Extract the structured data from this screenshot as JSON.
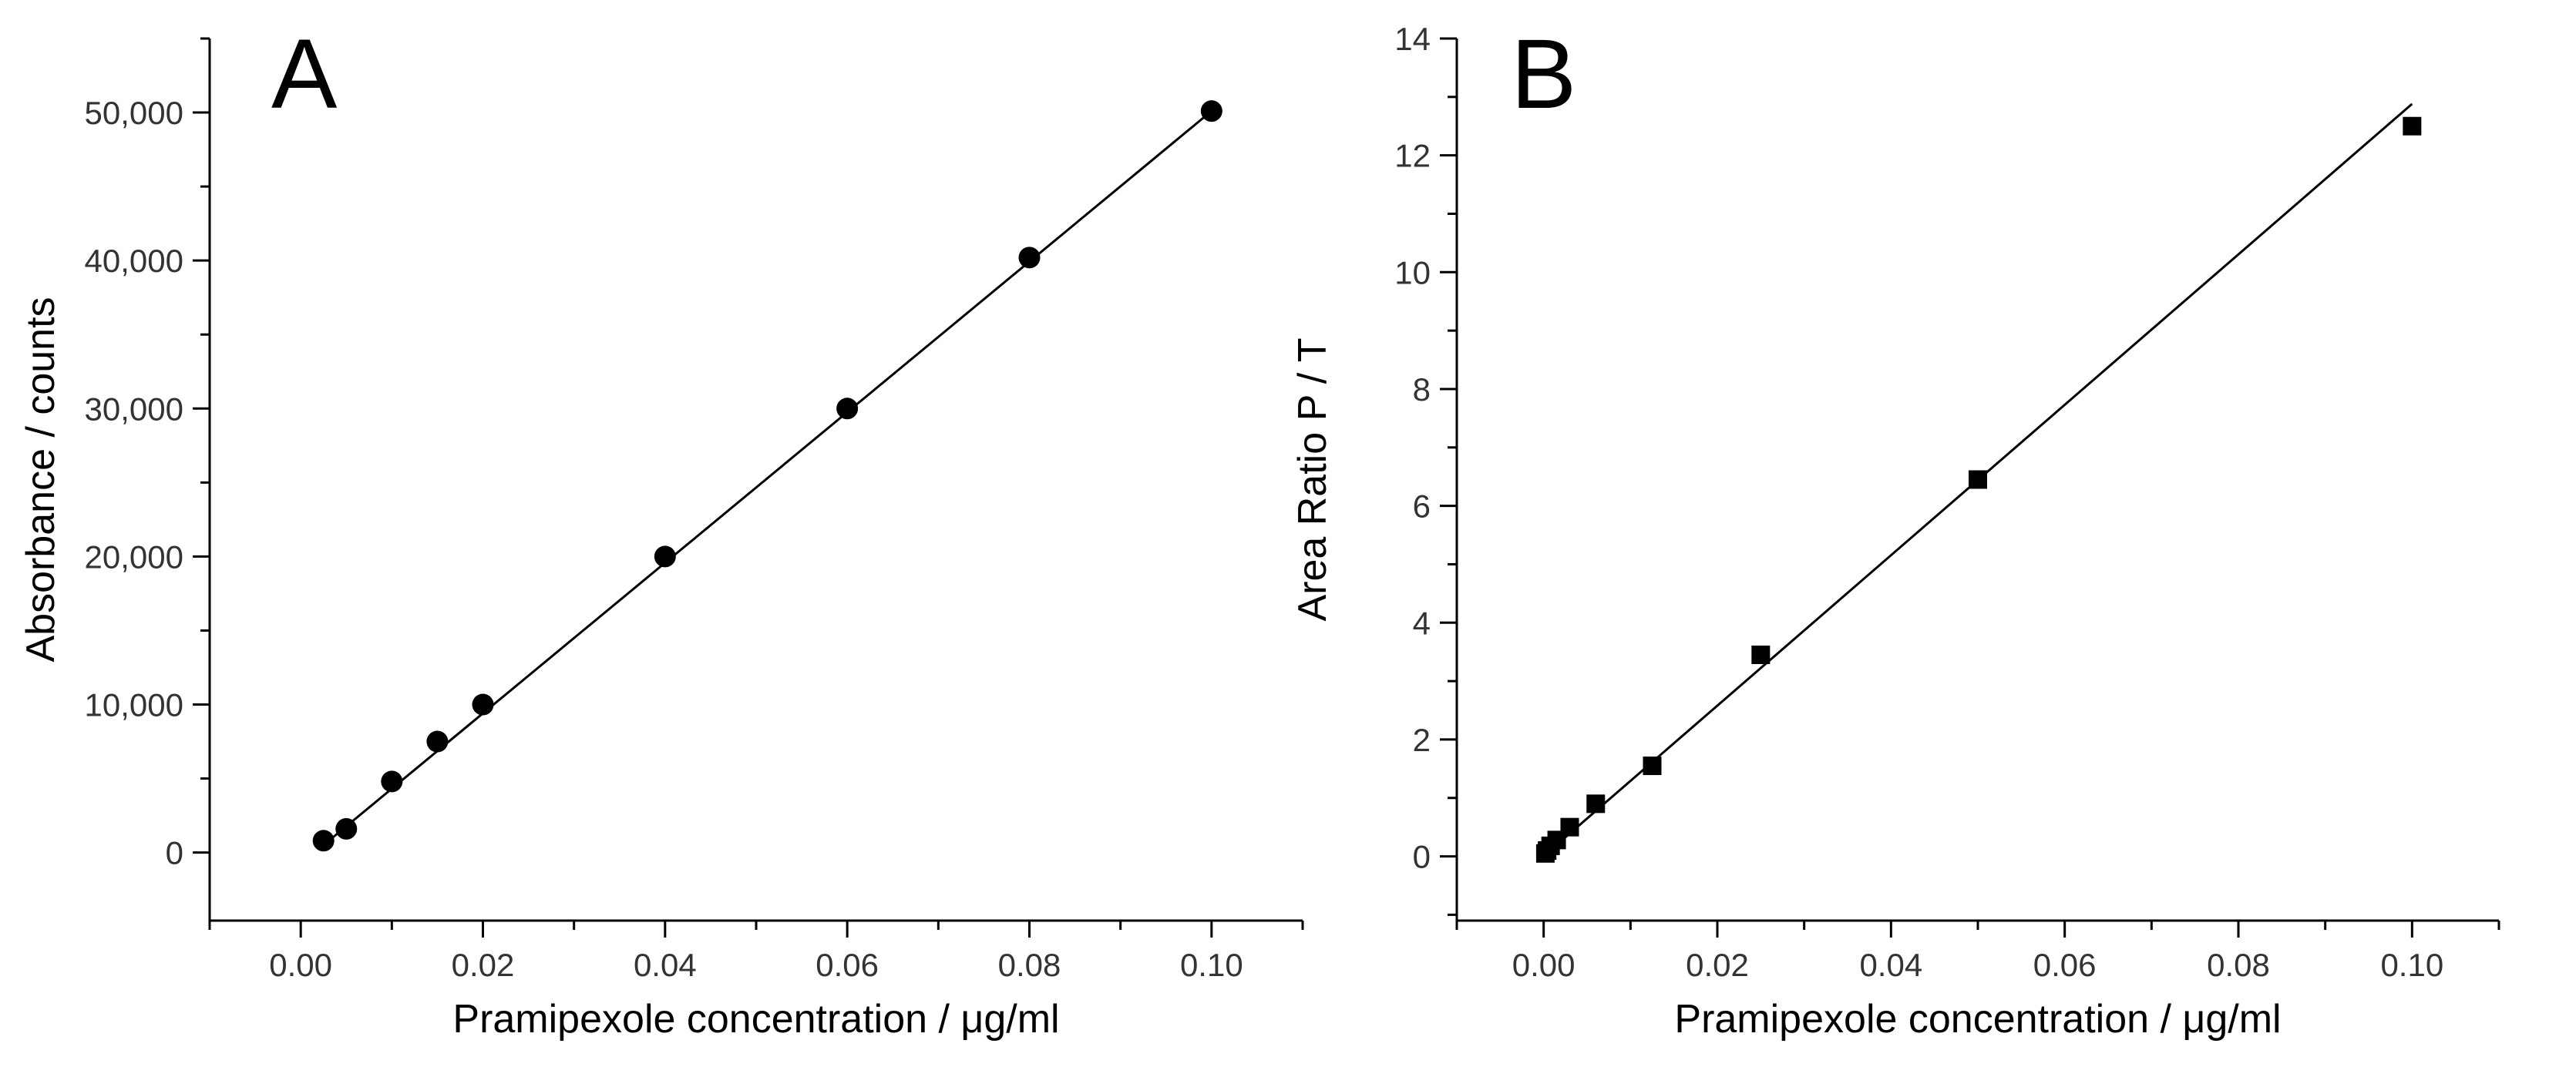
{
  "chart_data": [
    {
      "panel": "A",
      "type": "scatter",
      "title": "A",
      "xlabel": "Pramipexole concentration / μg/ml",
      "ylabel": "Absorbance / counts",
      "xlim": [
        -0.01,
        0.11
      ],
      "ylim": [
        -4600,
        55000
      ],
      "xticks": [
        0.0,
        0.02,
        0.04,
        0.06,
        0.08,
        0.1
      ],
      "xtick_labels": [
        "0.00",
        "0.02",
        "0.04",
        "0.06",
        "0.08",
        "0.10"
      ],
      "yticks": [
        0,
        10000,
        20000,
        30000,
        40000,
        50000
      ],
      "ytick_labels": [
        "0",
        "10,000",
        "20,000",
        "30,000",
        "40,000",
        "50,000"
      ],
      "marker": "circle",
      "grid": false,
      "series": [
        {
          "name": "Absorbance",
          "x": [
            0.0025,
            0.005,
            0.01,
            0.015,
            0.02,
            0.04,
            0.06,
            0.08,
            0.1
          ],
          "y": [
            800,
            1600,
            4800,
            7500,
            10000,
            20000,
            30000,
            40200,
            50100
          ]
        }
      ],
      "fit": {
        "x": [
          0.0025,
          0.1
        ],
        "y": [
          500,
          50100
        ]
      }
    },
    {
      "panel": "B",
      "type": "scatter",
      "title": "B",
      "xlabel": "Pramipexole concentration / μg/ml",
      "ylabel": "Area Ratio P / T",
      "xlim": [
        -0.01,
        0.11
      ],
      "ylim": [
        -1.1,
        14.0
      ],
      "xticks": [
        0.0,
        0.02,
        0.04,
        0.06,
        0.08,
        0.1
      ],
      "xtick_labels": [
        "0.00",
        "0.02",
        "0.04",
        "0.06",
        "0.08",
        "0.10"
      ],
      "yticks": [
        0,
        2,
        4,
        6,
        8,
        10,
        12,
        14
      ],
      "ytick_labels": [
        "0",
        "2",
        "4",
        "6",
        "8",
        "10",
        "12",
        "14"
      ],
      "marker": "square",
      "grid": false,
      "series": [
        {
          "name": "Area Ratio",
          "x": [
            0.0002,
            0.0004,
            0.0008,
            0.0015,
            0.003,
            0.006,
            0.0125,
            0.025,
            0.05,
            0.1
          ],
          "y": [
            0.05,
            0.1,
            0.18,
            0.28,
            0.5,
            0.9,
            1.55,
            3.45,
            6.45,
            12.5
          ]
        }
      ],
      "fit": {
        "x": [
          0.0002,
          0.1
        ],
        "y": [
          0.03,
          12.88
        ]
      }
    }
  ]
}
